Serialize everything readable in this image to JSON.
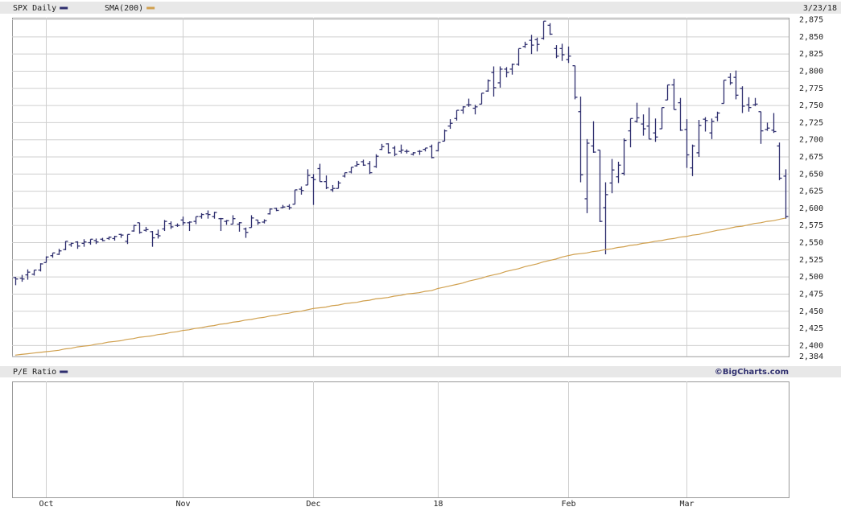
{
  "chart_data": {
    "type": "ohlc",
    "date_label": "3/23/18",
    "credit": "©BigCharts.com",
    "categories": [
      null,
      null,
      null,
      null,
      null,
      "Oct",
      null,
      null,
      null,
      null,
      null,
      null,
      null,
      null,
      null,
      null,
      null,
      null,
      null,
      null,
      null,
      null,
      null,
      null,
      null,
      null,
      null,
      "Nov",
      null,
      null,
      null,
      null,
      null,
      null,
      null,
      null,
      null,
      null,
      null,
      null,
      null,
      null,
      null,
      null,
      null,
      null,
      null,
      null,
      "Dec",
      null,
      null,
      null,
      null,
      null,
      null,
      null,
      null,
      null,
      null,
      null,
      null,
      null,
      null,
      null,
      null,
      null,
      null,
      null,
      "18",
      null,
      null,
      null,
      null,
      null,
      null,
      null,
      null,
      null,
      null,
      null,
      null,
      null,
      null,
      null,
      null,
      null,
      null,
      null,
      null,
      "Feb",
      null,
      null,
      null,
      null,
      null,
      null,
      null,
      null,
      null,
      null,
      null,
      null,
      null,
      null,
      null,
      null,
      null,
      null,
      "Mar",
      null,
      null,
      null,
      null,
      null,
      null,
      null,
      null,
      null,
      null,
      null,
      null,
      null,
      null,
      null,
      null
    ],
    "series": [
      {
        "name": "SPX Daily",
        "color": "#2e2e6e",
        "open": [
          2499,
          2498,
          2503,
          2504,
          2510,
          2521,
          2531,
          2533,
          2540,
          2547,
          2551,
          2549,
          2550,
          2553,
          2555,
          2556,
          2556,
          2562,
          2552,
          2567,
          2579,
          2568,
          2566,
          2562,
          2570,
          2578,
          2575,
          2583,
          2579,
          2581,
          2588,
          2592,
          2588,
          2585,
          2581,
          2577,
          2577,
          2570,
          2572,
          2583,
          2580,
          2592,
          2600,
          2601,
          2603,
          2606,
          2628,
          2634,
          2645,
          2658,
          2639,
          2627,
          2629,
          2647,
          2653,
          2662,
          2668,
          2665,
          2661,
          2686,
          2694,
          2688,
          2683,
          2683,
          2679,
          2683,
          2686,
          2690,
          2684,
          2698,
          2720,
          2731,
          2743,
          2751,
          2746,
          2752,
          2771,
          2798,
          2783,
          2803,
          2803,
          2810,
          2836,
          2845,
          2846,
          2848,
          2867,
          2833,
          2833,
          2817,
          2808,
          2741,
          2614,
          2691,
          2685,
          2601,
          2637,
          2646,
          2651,
          2713,
          2727,
          2723,
          2720,
          2710,
          2716,
          2758,
          2780,
          2754,
          2715,
          2659,
          2681,
          2730,
          2710,
          2733,
          2753,
          2791,
          2791,
          2775,
          2751,
          2751,
          2741,
          2715,
          2714,
          2691,
          2647
        ],
        "high": [
          2500,
          2503,
          2511,
          2510,
          2520,
          2530,
          2535,
          2541,
          2552,
          2550,
          2552,
          2555,
          2555,
          2556,
          2557,
          2559,
          2560,
          2563,
          2562,
          2576,
          2579,
          2573,
          2567,
          2569,
          2583,
          2581,
          2578,
          2588,
          2581,
          2588,
          2593,
          2597,
          2595,
          2586,
          2583,
          2590,
          2580,
          2572,
          2590,
          2583,
          2584,
          2600,
          2601,
          2605,
          2606,
          2627,
          2632,
          2657,
          2650,
          2665,
          2648,
          2634,
          2640,
          2652,
          2660,
          2669,
          2671,
          2669,
          2679,
          2694,
          2695,
          2691,
          2693,
          2686,
          2682,
          2685,
          2688,
          2693,
          2696,
          2715,
          2730,
          2743,
          2749,
          2760,
          2751,
          2768,
          2788,
          2807,
          2807,
          2806,
          2811,
          2833,
          2843,
          2853,
          2849,
          2873,
          2870,
          2838,
          2840,
          2836,
          2808,
          2763,
          2701,
          2727,
          2685,
          2638,
          2672,
          2668,
          2702,
          2731,
          2754,
          2737,
          2747,
          2731,
          2747,
          2780,
          2789,
          2761,
          2730,
          2693,
          2729,
          2733,
          2731,
          2741,
          2787,
          2797,
          2801,
          2778,
          2762,
          2761,
          2741,
          2725,
          2739,
          2696,
          2657
        ],
        "low": [
          2488,
          2493,
          2496,
          2502,
          2508,
          2521,
          2528,
          2532,
          2539,
          2544,
          2541,
          2544,
          2547,
          2548,
          2552,
          2554,
          2553,
          2557,
          2548,
          2566,
          2563,
          2566,
          2544,
          2556,
          2567,
          2570,
          2573,
          2575,
          2567,
          2577,
          2585,
          2585,
          2585,
          2567,
          2576,
          2577,
          2566,
          2557,
          2572,
          2576,
          2578,
          2591,
          2596,
          2600,
          2598,
          2606,
          2620,
          2634,
          2605,
          2639,
          2628,
          2624,
          2629,
          2645,
          2651,
          2661,
          2662,
          2650,
          2659,
          2685,
          2680,
          2676,
          2680,
          2680,
          2677,
          2678,
          2683,
          2673,
          2683,
          2698,
          2716,
          2728,
          2738,
          2748,
          2737,
          2752,
          2770,
          2763,
          2776,
          2791,
          2795,
          2808,
          2834,
          2825,
          2829,
          2846,
          2853,
          2819,
          2815,
          2812,
          2759,
          2638,
          2593,
          2681,
          2580,
          2533,
          2622,
          2637,
          2648,
          2689,
          2725,
          2706,
          2701,
          2697,
          2716,
          2758,
          2744,
          2713,
          2659,
          2647,
          2675,
          2712,
          2701,
          2727,
          2753,
          2780,
          2759,
          2739,
          2741,
          2749,
          2694,
          2713,
          2710,
          2641,
          2585
        ],
        "close": [
          2497,
          2497,
          2507,
          2510,
          2519,
          2529,
          2535,
          2538,
          2552,
          2549,
          2545,
          2551,
          2555,
          2551,
          2553,
          2558,
          2559,
          2561,
          2562,
          2575,
          2565,
          2569,
          2557,
          2560,
          2581,
          2573,
          2575,
          2579,
          2580,
          2588,
          2591,
          2591,
          2594,
          2585,
          2582,
          2585,
          2579,
          2565,
          2586,
          2579,
          2582,
          2599,
          2597,
          2602,
          2601,
          2627,
          2626,
          2648,
          2642,
          2639,
          2630,
          2629,
          2637,
          2652,
          2660,
          2664,
          2663,
          2652,
          2676,
          2690,
          2681,
          2679,
          2685,
          2683,
          2681,
          2683,
          2688,
          2674,
          2696,
          2713,
          2724,
          2743,
          2748,
          2751,
          2748,
          2768,
          2786,
          2776,
          2803,
          2798,
          2810,
          2833,
          2839,
          2838,
          2839,
          2873,
          2854,
          2822,
          2824,
          2822,
          2762,
          2649,
          2695,
          2682,
          2581,
          2620,
          2656,
          2663,
          2699,
          2731,
          2732,
          2716,
          2701,
          2704,
          2747,
          2780,
          2744,
          2714,
          2678,
          2691,
          2721,
          2728,
          2727,
          2739,
          2787,
          2783,
          2765,
          2749,
          2747,
          2752,
          2713,
          2717,
          2712,
          2644,
          2588
        ]
      },
      {
        "name": "SMA(200)",
        "color": "#d0a04e",
        "type": "line",
        "values": [
          2386,
          2387,
          2388,
          2389,
          2390,
          2391,
          2392,
          2393,
          2395,
          2396,
          2398,
          2399,
          2400,
          2402,
          2403,
          2405,
          2406,
          2407,
          2409,
          2410,
          2412,
          2413,
          2414,
          2416,
          2417,
          2419,
          2420,
          2422,
          2423,
          2425,
          2426,
          2428,
          2429,
          2431,
          2432,
          2434,
          2435,
          2437,
          2438,
          2440,
          2441,
          2443,
          2444,
          2446,
          2447,
          2449,
          2450,
          2452,
          2454,
          2455,
          2456,
          2458,
          2459,
          2461,
          2462,
          2463,
          2465,
          2466,
          2468,
          2469,
          2470,
          2472,
          2473,
          2475,
          2476,
          2477,
          2479,
          2480,
          2483,
          2485,
          2487,
          2489,
          2491,
          2494,
          2496,
          2498,
          2501,
          2503,
          2505,
          2508,
          2510,
          2512,
          2515,
          2517,
          2519,
          2522,
          2524,
          2526,
          2529,
          2531,
          2533,
          2534,
          2535,
          2537,
          2538,
          2540,
          2541,
          2543,
          2544,
          2546,
          2547,
          2549,
          2550,
          2552,
          2553,
          2555,
          2556,
          2558,
          2559,
          2561,
          2562,
          2564,
          2566,
          2568,
          2569,
          2571,
          2573,
          2574,
          2576,
          2578,
          2579,
          2581,
          2582,
          2584,
          2586
        ]
      }
    ],
    "ylim": [
      2384,
      2878
    ],
    "yticks": [
      {
        "value": 2384,
        "label": "2,384"
      },
      {
        "value": 2400,
        "label": "2,400"
      },
      {
        "value": 2425,
        "label": "2,425"
      },
      {
        "value": 2450,
        "label": "2,450"
      },
      {
        "value": 2475,
        "label": "2,475"
      },
      {
        "value": 2500,
        "label": "2,500"
      },
      {
        "value": 2525,
        "label": "2,525"
      },
      {
        "value": 2550,
        "label": "2,550"
      },
      {
        "value": 2575,
        "label": "2,575"
      },
      {
        "value": 2600,
        "label": "2,600"
      },
      {
        "value": 2625,
        "label": "2,625"
      },
      {
        "value": 2650,
        "label": "2,650"
      },
      {
        "value": 2675,
        "label": "2,675"
      },
      {
        "value": 2700,
        "label": "2,700"
      },
      {
        "value": 2725,
        "label": "2,725"
      },
      {
        "value": 2750,
        "label": "2,750"
      },
      {
        "value": 2775,
        "label": "2,775"
      },
      {
        "value": 2800,
        "label": "2,800"
      },
      {
        "value": 2825,
        "label": "2,825"
      },
      {
        "value": 2850,
        "label": "2,850"
      },
      {
        "value": 2875,
        "label": "2,875"
      }
    ],
    "grid": true,
    "lower_panel": {
      "title": "P/E Ratio",
      "color": "#2e2e6e"
    }
  }
}
